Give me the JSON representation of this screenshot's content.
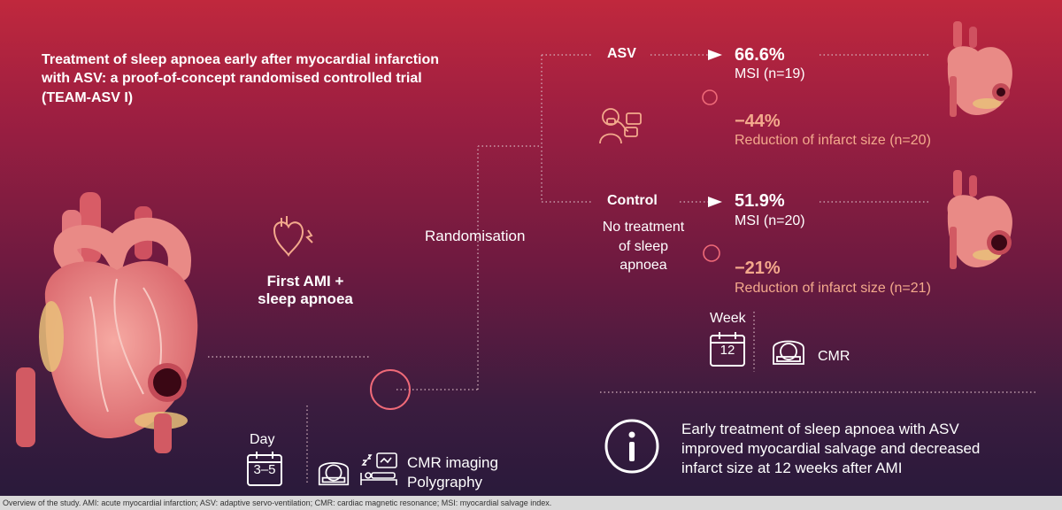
{
  "title": "Treatment of sleep apnoea early after myocardial infarction with ASV: a proof-of-concept randomised controlled trial (TEAM-ASV I)",
  "patients": {
    "line1": "First AMI +",
    "line2": "sleep apnoea"
  },
  "randomisation": "Randomisation",
  "arms": {
    "asv": {
      "label": "ASV",
      "msi_value": "66.6%",
      "msi_label": "MSI (n=19)",
      "reduction_value": "−44%",
      "reduction_label": "Reduction of infarct size (n=20)"
    },
    "control": {
      "label": "Control",
      "desc_line1": "No treatment",
      "desc_line2": "of sleep apnoea",
      "msi_value": "51.9%",
      "msi_label": "MSI (n=20)",
      "reduction_value": "−21%",
      "reduction_label": "Reduction of infarct size (n=21)"
    }
  },
  "baseline": {
    "day_label": "Day",
    "day_value": "3–5",
    "exam_line1": "CMR imaging",
    "exam_line2": "Polygraphy"
  },
  "followup": {
    "week_label": "Week",
    "week_value": "12",
    "exam": "CMR"
  },
  "conclusion": {
    "line1": "Early treatment of sleep apnoea with ASV",
    "line2": "improved myocardial salvage and decreased",
    "line3": "infarct size at 12 weeks after AMI"
  },
  "footer": "Overview of the study. AMI: acute myocardial infarction; ASV: adaptive servo-ventilation; CMR: cardiac magnetic resonance; MSI: myocardial salvage index.",
  "colors": {
    "accent_peach": "#f3a98c",
    "heart": "#e98a86",
    "circle_marker": "#ef6a78"
  }
}
